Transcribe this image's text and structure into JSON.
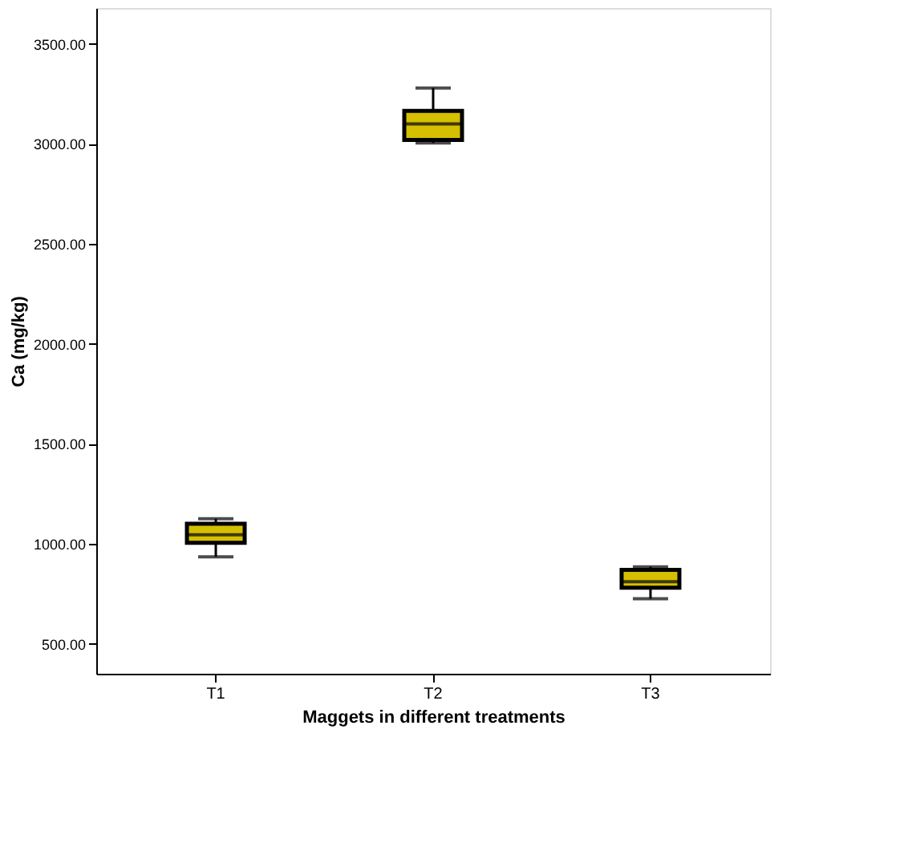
{
  "chart_data": {
    "type": "box",
    "xlabel": "Maggets in different treatments",
    "ylabel": "Ca (mg/kg)",
    "categories": [
      "T1",
      "T2",
      "T3"
    ],
    "color": "#d4bf00",
    "boxes": [
      {
        "low": 935,
        "q1": 1005,
        "median": 1045,
        "q3": 1100,
        "high": 1125
      },
      {
        "low": 3005,
        "q1": 3020,
        "median": 3100,
        "q3": 3165,
        "high": 3280
      },
      {
        "low": 725,
        "q1": 780,
        "median": 810,
        "q3": 870,
        "high": 885
      }
    ],
    "ylim": [
      350,
      3680
    ],
    "yticks": [
      {
        "value": 500,
        "label": "500.00"
      },
      {
        "value": 1000,
        "label": "1000.00"
      },
      {
        "value": 1500,
        "label": "1500.00"
      },
      {
        "value": 2000,
        "label": "2000.00"
      },
      {
        "value": 2500,
        "label": "2500.00"
      },
      {
        "value": 3000,
        "label": "3000.00"
      },
      {
        "value": 3500,
        "label": "3500.00"
      }
    ],
    "grid": false
  }
}
